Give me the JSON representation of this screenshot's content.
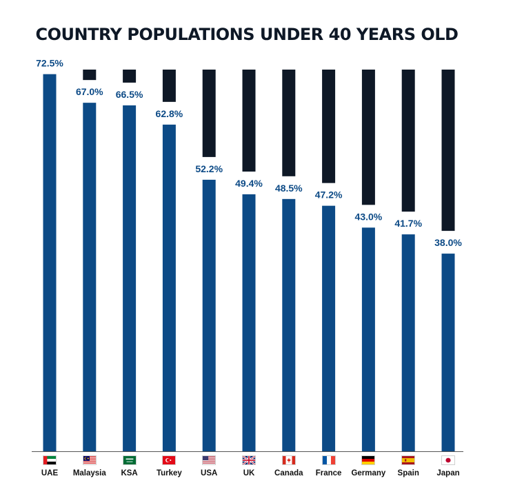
{
  "colors": {
    "title": "#0e1826",
    "fill": "#0c4a86",
    "remainder": "#0e1826",
    "label": "#0c4a86",
    "axis": "#555555"
  },
  "chart_data": {
    "type": "bar",
    "title": "COUNTRY POPULATIONS UNDER 40 YEARS OLD",
    "ylim": [
      0,
      100
    ],
    "categories": [
      "UAE",
      "Malaysia",
      "KSA",
      "Turkey",
      "USA",
      "UK",
      "Canada",
      "France",
      "Germany",
      "Spain",
      "Japan"
    ],
    "values": [
      72.5,
      67.0,
      66.5,
      62.8,
      52.2,
      49.4,
      48.5,
      47.2,
      43.0,
      41.7,
      38.0
    ],
    "value_labels": [
      "72.5%",
      "67.0%",
      "66.5%",
      "62.8%",
      "52.2%",
      "49.4%",
      "48.5%",
      "47.2%",
      "43.0%",
      "41.7%",
      "38.0%"
    ],
    "flag_icons": [
      "uae-flag-icon",
      "malaysia-flag-icon",
      "ksa-flag-icon",
      "turkey-flag-icon",
      "usa-flag-icon",
      "uk-flag-icon",
      "canada-flag-icon",
      "france-flag-icon",
      "germany-flag-icon",
      "spain-flag-icon",
      "japan-flag-icon"
    ]
  }
}
